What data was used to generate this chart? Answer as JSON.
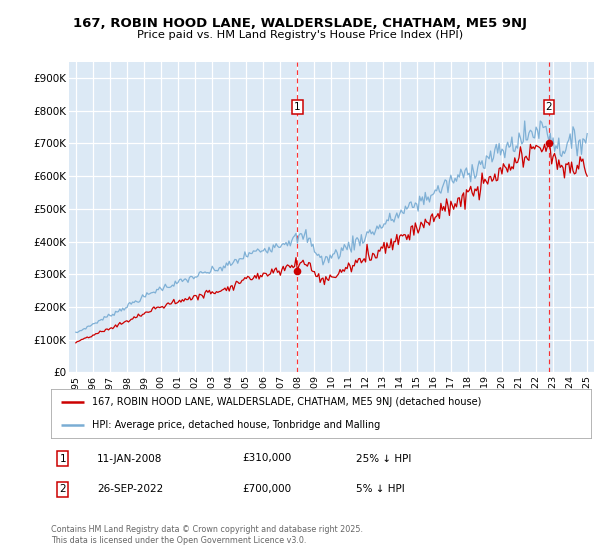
{
  "title1": "167, ROBIN HOOD LANE, WALDERSLADE, CHATHAM, ME5 9NJ",
  "title2": "Price paid vs. HM Land Registry's House Price Index (HPI)",
  "ylim": [
    0,
    950000
  ],
  "yticks": [
    0,
    100000,
    200000,
    300000,
    400000,
    500000,
    600000,
    700000,
    800000,
    900000
  ],
  "ytick_labels": [
    "£0",
    "£100K",
    "£200K",
    "£300K",
    "£400K",
    "£500K",
    "£600K",
    "£700K",
    "£800K",
    "£900K"
  ],
  "plot_bg_color": "#dce9f5",
  "grid_color": "#ffffff",
  "red_line_color": "#cc0000",
  "blue_line_color": "#7aadd4",
  "sale1_year": 2008.04,
  "sale1_price": 310000,
  "sale2_year": 2022.75,
  "sale2_price": 700000,
  "legend_line1": "167, ROBIN HOOD LANE, WALDERSLADE, CHATHAM, ME5 9NJ (detached house)",
  "legend_line2": "HPI: Average price, detached house, Tonbridge and Malling",
  "row1_label": "1",
  "row1_date": "11-JAN-2008",
  "row1_price": "£310,000",
  "row1_note": "25% ↓ HPI",
  "row2_label": "2",
  "row2_date": "26-SEP-2022",
  "row2_price": "£700,000",
  "row2_note": "5% ↓ HPI",
  "footnote": "Contains HM Land Registry data © Crown copyright and database right 2025.\nThis data is licensed under the Open Government Licence v3.0."
}
